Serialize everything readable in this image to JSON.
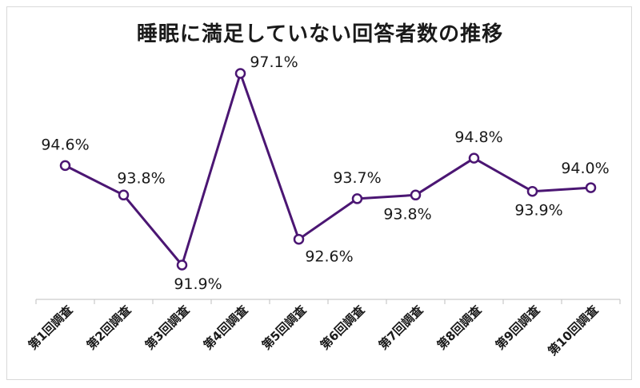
{
  "chart_data": {
    "type": "line",
    "title": "睡眠に満足していない回答者数の推移",
    "categories": [
      "第1回調査",
      "第2回調査",
      "第3回調査",
      "第4回調査",
      "第5回調査",
      "第6回調査",
      "第7回調査",
      "第8回調査",
      "第9回調査",
      "第10回調査"
    ],
    "series": [
      {
        "values": [
          94.6,
          93.8,
          91.9,
          97.1,
          92.6,
          93.7,
          93.8,
          94.8,
          93.9,
          94.0
        ],
        "labels": [
          "94.6%",
          "93.8%",
          "91.9%",
          "97.1%",
          "92.6%",
          "93.7%",
          "93.8%",
          "94.8%",
          "93.9%",
          "94.0%"
        ]
      }
    ],
    "ylim": [
      91.0,
      97.5
    ],
    "grid": false,
    "legend": "none",
    "colors": {
      "line": "#4b1673",
      "marker_fill": "#ffffff",
      "axis": "#bfbfbf"
    }
  }
}
